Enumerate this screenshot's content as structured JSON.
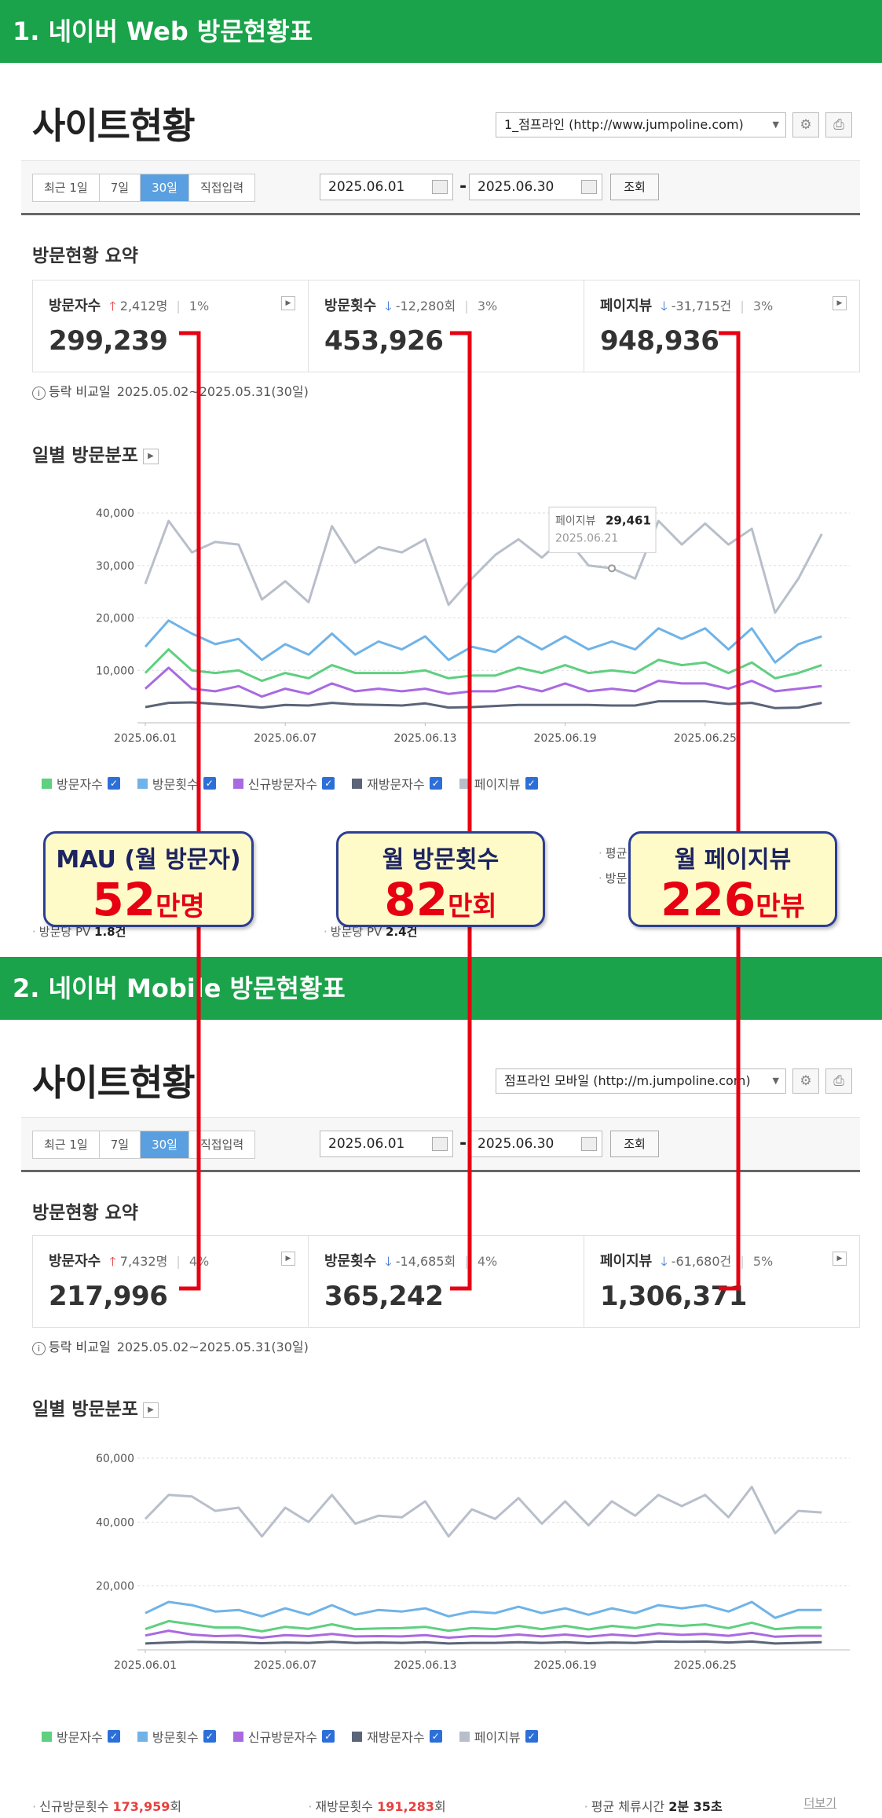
{
  "sections": [
    {
      "header": "1. 네이버 Web 방문현황표",
      "page_title": "사이트현황",
      "site_select": "1_점프라인 (http://www.jumpoline.com)",
      "periods": [
        "최근 1일",
        "7일",
        "30일",
        "직접입력"
      ],
      "active_period": "30일",
      "date_from": "2025.06.01",
      "date_to": "2025.06.30",
      "search_label": "조회",
      "summary_title": "방문현황 요약",
      "metrics": [
        {
          "label": "방문자수",
          "direction": "up",
          "change": "2,412명",
          "pct": "1%",
          "value": "299,239"
        },
        {
          "label": "방문횟수",
          "direction": "down",
          "change": "-12,280회",
          "pct": "3%",
          "value": "453,926"
        },
        {
          "label": "페이지뷰",
          "direction": "down",
          "change": "-31,715건",
          "pct": "3%",
          "value": "948,936"
        }
      ],
      "compare_label": "등락 비교일",
      "compare_range": "2025.05.02~2025.05.31(30일)",
      "daily_title": "일별 방문분포",
      "legend": [
        "방문자수",
        "방문횟수",
        "신규방문자수",
        "재방문자수",
        "페이지뷰"
      ],
      "partial_stats": [
        "방문당 PV",
        "1.8건",
        "방문당 PV",
        "2.4건",
        "평균",
        "방문"
      ]
    },
    {
      "header": "2. 네이버 Mobile 방문현황표",
      "page_title": "사이트현황",
      "site_select": "점프라인 모바일 (http://m.jumpoline.com)",
      "periods": [
        "최근 1일",
        "7일",
        "30일",
        "직접입력"
      ],
      "active_period": "30일",
      "date_from": "2025.06.01",
      "date_to": "2025.06.30",
      "search_label": "조회",
      "summary_title": "방문현황 요약",
      "metrics": [
        {
          "label": "방문자수",
          "direction": "up",
          "change": "7,432명",
          "pct": "4%",
          "value": "217,996"
        },
        {
          "label": "방문횟수",
          "direction": "down",
          "change": "-14,685회",
          "pct": "4%",
          "value": "365,242"
        },
        {
          "label": "페이지뷰",
          "direction": "down",
          "change": "-61,680건",
          "pct": "5%",
          "value": "1,306,371"
        }
      ],
      "compare_label": "등락 비교일",
      "compare_range": "2025.05.02~2025.05.31(30일)",
      "daily_title": "일별 방문분포",
      "legend": [
        "방문자수",
        "방문횟수",
        "신규방문자수",
        "재방문자수",
        "페이지뷰"
      ],
      "details": {
        "new_visits_label": "신규방문횟수",
        "new_visits_value": "173,959",
        "new_visits_unit": "회",
        "return_visits_label": "재방문횟수",
        "return_visits_value": "191,283",
        "return_visits_unit": "회",
        "avg_stay_label": "평균 체류시간",
        "avg_stay_value": "2분 35초",
        "more_label": "더보기"
      }
    }
  ],
  "callouts": [
    {
      "title": "MAU (월 방문자)",
      "number": "52",
      "unit": "만명"
    },
    {
      "title": "월 방문횟수",
      "number": "82",
      "unit": "만회"
    },
    {
      "title": "월 페이지뷰",
      "number": "226",
      "unit": "만뷰"
    }
  ],
  "colors": {
    "section_header": "#1aa34a",
    "visitors": "#5fcf80",
    "visits": "#6fb3e8",
    "new_visitors": "#a96ae0",
    "returning": "#5b6478",
    "pageviews": "#b8bfca",
    "connector": "#e60012",
    "callout_border": "#2c3e95",
    "callout_bg": "#fffbc9"
  },
  "chart_data": [
    {
      "type": "line",
      "x_ticks": [
        "2025.06.01",
        "2025.06.07",
        "2025.06.13",
        "2025.06.19",
        "2025.06.25"
      ],
      "y_ticks": [
        "40,000",
        "30,000",
        "20,000",
        "10,000"
      ],
      "ylim": [
        0,
        40000
      ],
      "x": [
        "2025.06.01",
        "2025.06.02",
        "2025.06.03",
        "2025.06.04",
        "2025.06.05",
        "2025.06.06",
        "2025.06.07",
        "2025.06.08",
        "2025.06.09",
        "2025.06.10",
        "2025.06.11",
        "2025.06.12",
        "2025.06.13",
        "2025.06.14",
        "2025.06.15",
        "2025.06.16",
        "2025.06.17",
        "2025.06.18",
        "2025.06.19",
        "2025.06.20",
        "2025.06.21",
        "2025.06.22",
        "2025.06.23",
        "2025.06.24",
        "2025.06.25",
        "2025.06.26",
        "2025.06.27",
        "2025.06.28",
        "2025.06.29",
        "2025.06.30"
      ],
      "tooltip": {
        "label": "페이지뷰",
        "value": "29,461",
        "date": "2025.06.21"
      },
      "series": [
        {
          "name": "페이지뷰",
          "values": [
            26500,
            38500,
            32500,
            34500,
            34000,
            23500,
            27000,
            23000,
            37500,
            30500,
            33500,
            32500,
            35000,
            22500,
            27500,
            32000,
            35000,
            31500,
            35500,
            30000,
            29461,
            27500,
            38500,
            34000,
            38000,
            34000,
            37000,
            21000,
            27500,
            36000
          ]
        },
        {
          "name": "방문횟수",
          "values": [
            14500,
            19500,
            17000,
            15000,
            16000,
            12000,
            15000,
            13000,
            17000,
            13000,
            15500,
            14000,
            16500,
            12000,
            14500,
            13500,
            16500,
            14000,
            16500,
            14000,
            15500,
            14000,
            18000,
            16000,
            18000,
            14000,
            18000,
            11500,
            15000,
            16500
          ]
        },
        {
          "name": "방문자수",
          "values": [
            9500,
            14000,
            10000,
            9500,
            10000,
            8000,
            9500,
            8500,
            11000,
            9500,
            9500,
            9500,
            10000,
            8500,
            9000,
            9000,
            10500,
            9500,
            11000,
            9500,
            10000,
            9500,
            12000,
            11000,
            11500,
            9500,
            11500,
            8500,
            9500,
            11000
          ]
        },
        {
          "name": "신규방문자수",
          "values": [
            6500,
            10500,
            6500,
            6000,
            7000,
            5000,
            6500,
            5500,
            7500,
            6000,
            6500,
            6000,
            6500,
            5500,
            6000,
            6000,
            7000,
            6000,
            7500,
            6000,
            6500,
            6000,
            8000,
            7500,
            7500,
            6500,
            8000,
            6000,
            6500,
            7000
          ]
        },
        {
          "name": "재방문자수",
          "values": [
            3000,
            3800,
            3900,
            3600,
            3300,
            2900,
            3400,
            3300,
            3800,
            3500,
            3400,
            3300,
            3700,
            2900,
            3000,
            3200,
            3400,
            3400,
            3400,
            3400,
            3300,
            3300,
            4100,
            4100,
            4100,
            3600,
            3800,
            2800,
            2900,
            3800
          ]
        }
      ]
    },
    {
      "type": "line",
      "x_ticks": [
        "2025.06.01",
        "2025.06.07",
        "2025.06.13",
        "2025.06.19",
        "2025.06.25"
      ],
      "y_ticks": [
        "60,000",
        "40,000",
        "20,000"
      ],
      "ylim": [
        0,
        60000
      ],
      "x": [
        "2025.06.01",
        "2025.06.02",
        "2025.06.03",
        "2025.06.04",
        "2025.06.05",
        "2025.06.06",
        "2025.06.07",
        "2025.06.08",
        "2025.06.09",
        "2025.06.10",
        "2025.06.11",
        "2025.06.12",
        "2025.06.13",
        "2025.06.14",
        "2025.06.15",
        "2025.06.16",
        "2025.06.17",
        "2025.06.18",
        "2025.06.19",
        "2025.06.20",
        "2025.06.21",
        "2025.06.22",
        "2025.06.23",
        "2025.06.24",
        "2025.06.25",
        "2025.06.26",
        "2025.06.27",
        "2025.06.28",
        "2025.06.29",
        "2025.06.30"
      ],
      "series": [
        {
          "name": "페이지뷰",
          "values": [
            41000,
            48500,
            48000,
            43500,
            44500,
            35500,
            44500,
            40000,
            48500,
            39500,
            42000,
            41500,
            46500,
            35500,
            44000,
            41000,
            47500,
            39500,
            46500,
            39000,
            46500,
            42000,
            48500,
            45000,
            48500,
            41500,
            51000,
            36500,
            43500,
            43000
          ]
        },
        {
          "name": "방문횟수",
          "values": [
            11500,
            15000,
            14000,
            12000,
            12500,
            10500,
            13000,
            11000,
            14000,
            11000,
            12500,
            12000,
            13000,
            10500,
            12000,
            11500,
            13500,
            11500,
            13000,
            11000,
            13000,
            11500,
            14000,
            13000,
            14000,
            12000,
            15000,
            10000,
            12500,
            12500
          ]
        },
        {
          "name": "방문자수",
          "values": [
            6500,
            9000,
            8000,
            7000,
            7000,
            5800,
            7200,
            6600,
            8000,
            6500,
            6700,
            6800,
            7200,
            6000,
            6800,
            6500,
            7500,
            6500,
            7500,
            6400,
            7500,
            6800,
            8000,
            7500,
            8000,
            6800,
            8500,
            6500,
            7000,
            7000
          ]
        },
        {
          "name": "신규방문자수",
          "values": [
            4500,
            6000,
            4800,
            4300,
            4500,
            3800,
            4600,
            4300,
            5000,
            4200,
            4300,
            4200,
            4600,
            3800,
            4300,
            4200,
            4800,
            4200,
            4800,
            4100,
            4800,
            4300,
            5200,
            4700,
            5000,
            4400,
            5300,
            4100,
            4400,
            4400
          ]
        },
        {
          "name": "재방문자수",
          "values": [
            2000,
            2300,
            2500,
            2400,
            2300,
            2100,
            2300,
            2200,
            2500,
            2200,
            2300,
            2200,
            2400,
            2000,
            2200,
            2200,
            2400,
            2200,
            2400,
            2100,
            2300,
            2200,
            2600,
            2500,
            2600,
            2300,
            2600,
            2000,
            2200,
            2400
          ]
        }
      ]
    }
  ]
}
